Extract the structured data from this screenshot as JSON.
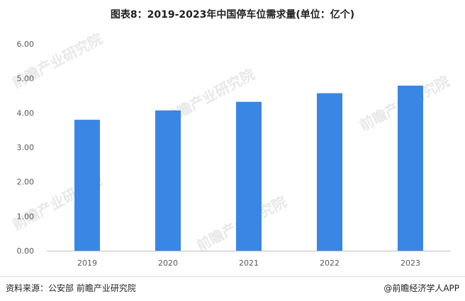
{
  "title": "图表8：2019-2023年中国停车位需求量(单位：亿个)",
  "source": "资料来源：公安部 前瞻产业研究院",
  "brand": "@前瞻经济学人APP",
  "watermark": "前瞻产业研究院",
  "colors": {
    "bar": "#3a86e4",
    "axis": "#bfbfbf",
    "tick_text": "#595959"
  },
  "chart_data": {
    "type": "bar",
    "categories": [
      "2019",
      "2020",
      "2021",
      "2022",
      "2023"
    ],
    "values": [
      3.8,
      4.07,
      4.32,
      4.57,
      4.79
    ],
    "title": "图表8：2019-2023年中国停车位需求量(单位：亿个)",
    "xlabel": "",
    "ylabel": "",
    "ylim": [
      0,
      6
    ],
    "yticks": [
      "0.00",
      "1.00",
      "2.00",
      "3.00",
      "4.00",
      "5.00",
      "6.00"
    ],
    "grid": false,
    "legend": "none"
  }
}
